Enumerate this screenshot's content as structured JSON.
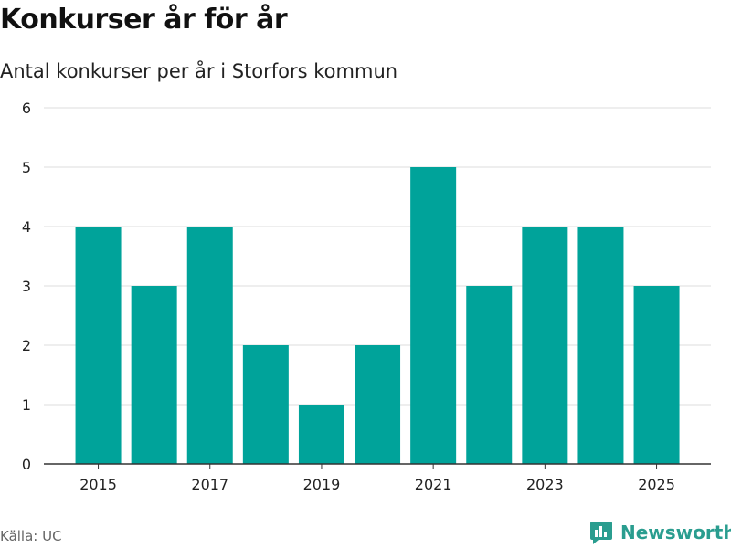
{
  "title": "Konkurser år för år",
  "subtitle": "Antal konkurser per år i Storfors kommun",
  "source": "Källa: UC",
  "brand": {
    "name": "Newsworthy",
    "icon": "newsworthy-logo-icon"
  },
  "colors": {
    "bar": "#00a39a",
    "grid": "#dddddd",
    "axis": "#333333",
    "brand": "#2a9d8f"
  },
  "chart_data": {
    "type": "bar",
    "title": "Konkurser år för år",
    "subtitle": "Antal konkurser per år i Storfors kommun",
    "xlabel": "",
    "ylabel": "",
    "categories": [
      "2015",
      "2016",
      "2017",
      "2018",
      "2019",
      "2020",
      "2021",
      "2022",
      "2023",
      "2024",
      "2025"
    ],
    "values": [
      4,
      3,
      4,
      2,
      1,
      2,
      5,
      3,
      4,
      4,
      3
    ],
    "x_tick_labels": [
      "2015",
      "2017",
      "2019",
      "2021",
      "2023",
      "2025"
    ],
    "y_ticks": [
      "0",
      "1",
      "2",
      "3",
      "4",
      "5",
      "6"
    ],
    "ylim": [
      0,
      6
    ],
    "grid": true,
    "legend": "none"
  }
}
